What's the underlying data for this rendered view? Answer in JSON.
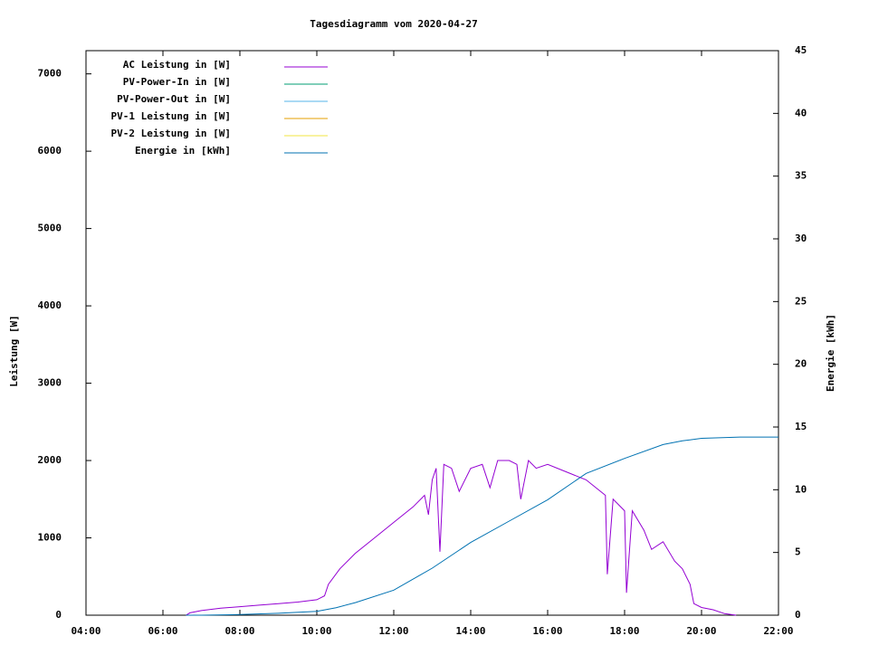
{
  "chart_data": {
    "type": "line",
    "title": "Tagesdiagramm vom 2020-04-27",
    "ylabel": "Leistung [W]",
    "y2label": "Energie [kWh]",
    "xlim": [
      4,
      22
    ],
    "xticks": [
      {
        "value": 4,
        "label": "04:00"
      },
      {
        "value": 6,
        "label": "06:00"
      },
      {
        "value": 8,
        "label": "08:00"
      },
      {
        "value": 10,
        "label": "10:00"
      },
      {
        "value": 12,
        "label": "12:00"
      },
      {
        "value": 14,
        "label": "14:00"
      },
      {
        "value": 16,
        "label": "16:00"
      },
      {
        "value": 18,
        "label": "18:00"
      },
      {
        "value": 20,
        "label": "20:00"
      },
      {
        "value": 22,
        "label": "22:00"
      }
    ],
    "ylim": [
      0,
      7300
    ],
    "yticks": [
      0,
      1000,
      2000,
      3000,
      4000,
      5000,
      6000,
      7000
    ],
    "y2lim": [
      0,
      45
    ],
    "y2ticks": [
      0,
      5,
      10,
      15,
      20,
      25,
      30,
      35,
      40,
      45
    ],
    "legend": "top-left",
    "series": [
      {
        "name": "AC Leistung in [W]",
        "color": "#9400d3",
        "x": [
          6.6,
          6.7,
          7,
          7.5,
          8,
          8.5,
          9,
          9.5,
          10,
          10.2,
          10.3,
          10.6,
          11,
          11.5,
          12,
          12.5,
          12.8,
          12.9,
          13,
          13.1,
          13.2,
          13.3,
          13.5,
          13.7,
          14,
          14.3,
          14.5,
          14.7,
          15,
          15.2,
          15.3,
          15.5,
          15.7,
          16,
          16.5,
          17,
          17.5,
          17.55,
          17.7,
          18,
          18.05,
          18.2,
          18.5,
          18.7,
          19,
          19.3,
          19.5,
          19.7,
          19.8,
          20,
          20.3,
          20.6,
          20.9
        ],
        "values": [
          0,
          30,
          60,
          90,
          110,
          130,
          150,
          170,
          200,
          250,
          400,
          600,
          800,
          1000,
          1200,
          1400,
          1550,
          1300,
          1750,
          1900,
          820,
          1950,
          1900,
          1600,
          1900,
          1950,
          1650,
          2000,
          2000,
          1950,
          1500,
          2000,
          1900,
          1950,
          1850,
          1750,
          1550,
          530,
          1500,
          1350,
          290,
          1350,
          1100,
          850,
          950,
          700,
          600,
          400,
          150,
          100,
          70,
          20,
          0
        ]
      },
      {
        "name": "PV-Power-In in [W]",
        "color": "#009e73",
        "x": [],
        "values": []
      },
      {
        "name": "PV-Power-Out in [W]",
        "color": "#56b4e9",
        "x": [],
        "values": []
      },
      {
        "name": "PV-1 Leistung in [W]",
        "color": "#e69f00",
        "x": [],
        "values": []
      },
      {
        "name": "PV-2 Leistung in [W]",
        "color": "#f0e442",
        "x": [],
        "values": []
      },
      {
        "name": "Energie in [kWh]",
        "color": "#0072b2",
        "axis": "y2",
        "x": [
          6.6,
          7,
          8,
          9,
          10,
          10.5,
          11,
          12,
          13,
          14,
          15,
          16,
          17,
          18,
          19,
          19.5,
          20,
          21,
          22
        ],
        "values": [
          0,
          0,
          0.05,
          0.15,
          0.3,
          0.6,
          1.0,
          2.0,
          3.75,
          5.8,
          7.5,
          9.2,
          11.3,
          12.5,
          13.6,
          13.9,
          14.1,
          14.2,
          14.2
        ]
      }
    ]
  }
}
